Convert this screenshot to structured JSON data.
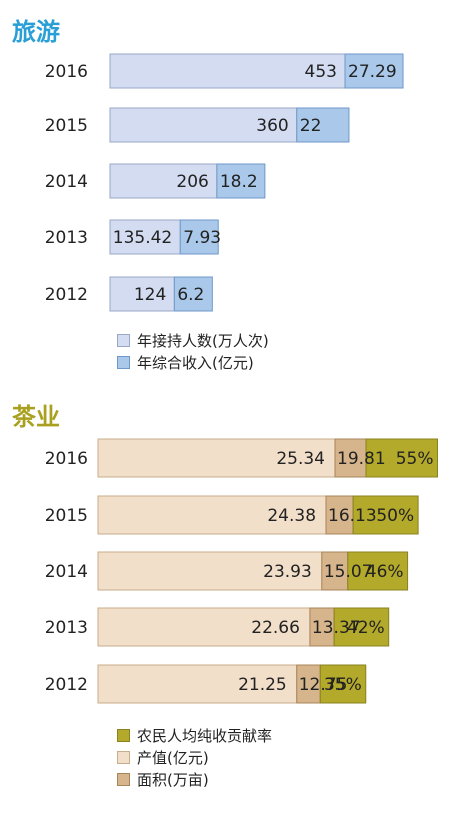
{
  "chart_data": [
    {
      "type": "bar",
      "orientation": "horizontal",
      "stacked": true,
      "title": "旅游",
      "categories": [
        "2016",
        "2015",
        "2014",
        "2013",
        "2012"
      ],
      "series": [
        {
          "name": "年接持人数(万人次)",
          "values": [
            453,
            360,
            206,
            135.42,
            124
          ],
          "labels": [
            "453",
            "360",
            "206",
            "135.42",
            "124"
          ],
          "color": "#d3dcf1"
        },
        {
          "name": "年综合收入(亿元)",
          "values": [
            27.29,
            22,
            18.2,
            7.93,
            6.2
          ],
          "labels": [
            "27.29",
            "22",
            "18.2",
            "7.93",
            "6.2"
          ],
          "color": "#a9c8ea"
        }
      ]
    },
    {
      "type": "bar",
      "orientation": "horizontal",
      "stacked": true,
      "title": "茶业",
      "categories": [
        "2016",
        "2015",
        "2014",
        "2013",
        "2012"
      ],
      "series": [
        {
          "name": "产值(亿元)",
          "values": [
            25.34,
            24.38,
            23.93,
            22.66,
            21.25
          ],
          "labels": [
            "25.34",
            "24.38",
            "23.93",
            "22.66",
            "21.25"
          ],
          "color": "#f2dfc9"
        },
        {
          "name": "面积(万亩)",
          "values": [
            19.81,
            16.13,
            15.07,
            13.37,
            12.75
          ],
          "labels": [
            "19.81",
            "16.13",
            "15.07",
            "13.37",
            "12.75"
          ],
          "color": "#d6b48c"
        },
        {
          "name": "农民人均纯收贡献率",
          "values": [
            55,
            50,
            46,
            42,
            35
          ],
          "labels": [
            "55%",
            "50%",
            "46%",
            "42%",
            "35%"
          ],
          "color": "#b3a92a"
        }
      ],
      "legend_order": [
        "农民人均纯收贡献率",
        "产值(亿元)",
        "面积(万亩)"
      ]
    }
  ]
}
